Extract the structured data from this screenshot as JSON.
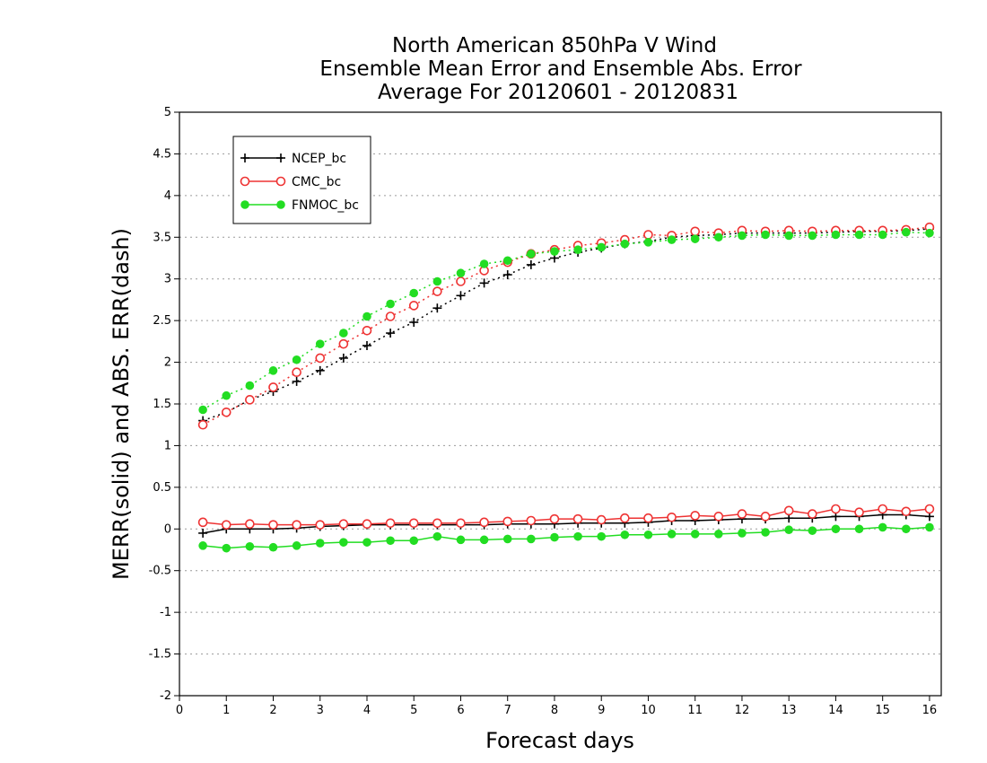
{
  "chart_data": {
    "type": "line",
    "title": "North American 850hPa V Wind",
    "subtitle_lines": [
      "Ensemble Mean Error and Ensemble Abs. Error",
      "Average For 20120601 - 20120831"
    ],
    "xlabel": "Forecast days",
    "ylabel": "MERR(solid) and ABS. ERR(dash)",
    "xlim": [
      0,
      16.25
    ],
    "ylim": [
      -2,
      5
    ],
    "xticks": [
      0,
      1,
      2,
      3,
      4,
      5,
      6,
      7,
      8,
      9,
      10,
      11,
      12,
      13,
      14,
      15,
      16
    ],
    "yticks": [
      -2,
      -1.5,
      -1,
      -0.5,
      0,
      0.5,
      1,
      1.5,
      2,
      2.5,
      3,
      3.5,
      4,
      4.5,
      5
    ],
    "ytick_labels": [
      "-2",
      "-1.5",
      "-1",
      "-0.5",
      "0",
      "0.5",
      "1",
      "1.5",
      "2",
      "2.5",
      "3",
      "3.5",
      "4",
      "4.5",
      "5"
    ],
    "xtick_labels": [
      "0",
      "1",
      "2",
      "3",
      "4",
      "5",
      "6",
      "7",
      "8",
      "9",
      "10",
      "11",
      "12",
      "13",
      "14",
      "15",
      "16"
    ],
    "grid": "horizontal dotted",
    "legend_placement": "top-left",
    "x": [
      0.5,
      1,
      1.5,
      2,
      2.5,
      3,
      3.5,
      4,
      4.5,
      5,
      5.5,
      6,
      6.5,
      7,
      7.5,
      8,
      8.5,
      9,
      9.5,
      10,
      10.5,
      11,
      11.5,
      12,
      12.5,
      13,
      13.5,
      14,
      14.5,
      15,
      15.5,
      16
    ],
    "series": [
      {
        "name": "NCEP_bc",
        "color": "#000000",
        "marker": "plus",
        "mean_error": [
          -0.05,
          0.0,
          0.0,
          0.0,
          0.01,
          0.03,
          0.04,
          0.05,
          0.05,
          0.05,
          0.05,
          0.05,
          0.05,
          0.06,
          0.06,
          0.06,
          0.07,
          0.07,
          0.07,
          0.08,
          0.1,
          0.1,
          0.11,
          0.12,
          0.12,
          0.13,
          0.13,
          0.15,
          0.15,
          0.17,
          0.17,
          0.15
        ],
        "abs_error": [
          1.3,
          1.4,
          1.55,
          1.65,
          1.77,
          1.9,
          2.05,
          2.2,
          2.35,
          2.48,
          2.65,
          2.8,
          2.95,
          3.05,
          3.17,
          3.25,
          3.32,
          3.37,
          3.42,
          3.45,
          3.5,
          3.52,
          3.53,
          3.55,
          3.55,
          3.55,
          3.55,
          3.56,
          3.57,
          3.57,
          3.58,
          3.6
        ]
      },
      {
        "name": "CMC_bc",
        "color": "#ee3333",
        "marker": "open-circle",
        "mean_error": [
          0.08,
          0.05,
          0.06,
          0.05,
          0.05,
          0.05,
          0.06,
          0.06,
          0.07,
          0.07,
          0.07,
          0.07,
          0.08,
          0.09,
          0.1,
          0.12,
          0.12,
          0.11,
          0.13,
          0.13,
          0.14,
          0.16,
          0.15,
          0.18,
          0.15,
          0.22,
          0.18,
          0.24,
          0.2,
          0.24,
          0.21,
          0.24
        ],
        "abs_error": [
          1.25,
          1.4,
          1.55,
          1.7,
          1.88,
          2.05,
          2.22,
          2.38,
          2.55,
          2.68,
          2.85,
          2.97,
          3.1,
          3.2,
          3.3,
          3.35,
          3.4,
          3.43,
          3.47,
          3.53,
          3.52,
          3.57,
          3.55,
          3.58,
          3.57,
          3.58,
          3.57,
          3.58,
          3.58,
          3.58,
          3.59,
          3.62
        ]
      },
      {
        "name": "FNMOC_bc",
        "color": "#22dd22",
        "marker": "filled-circle",
        "mean_error": [
          -0.2,
          -0.23,
          -0.21,
          -0.22,
          -0.2,
          -0.17,
          -0.16,
          -0.16,
          -0.14,
          -0.14,
          -0.09,
          -0.13,
          -0.13,
          -0.12,
          -0.12,
          -0.1,
          -0.09,
          -0.09,
          -0.07,
          -0.07,
          -0.06,
          -0.06,
          -0.06,
          -0.05,
          -0.04,
          -0.01,
          -0.02,
          0.0,
          0.0,
          0.02,
          0.0,
          0.02
        ],
        "abs_error": [
          1.43,
          1.6,
          1.72,
          1.9,
          2.03,
          2.22,
          2.35,
          2.55,
          2.7,
          2.83,
          2.97,
          3.07,
          3.18,
          3.22,
          3.3,
          3.33,
          3.35,
          3.38,
          3.42,
          3.44,
          3.47,
          3.48,
          3.5,
          3.52,
          3.53,
          3.52,
          3.52,
          3.53,
          3.53,
          3.53,
          3.56,
          3.55
        ]
      }
    ]
  }
}
